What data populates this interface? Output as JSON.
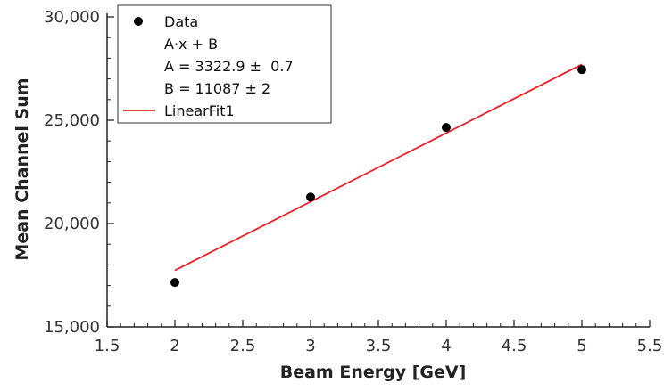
{
  "chart_data": {
    "type": "scatter",
    "title": "",
    "xlabel": "Beam Energy [GeV]",
    "ylabel": "Mean Channel Sum",
    "xlim": [
      1.5,
      5.5
    ],
    "ylim": [
      15000,
      30000
    ],
    "x_ticks": [
      1.5,
      2,
      2.5,
      3,
      3.5,
      4,
      4.5,
      5,
      5.5
    ],
    "x_tick_labels": [
      "1.5",
      "2",
      "2.5",
      "3",
      "3.5",
      "4",
      "4.5",
      "5",
      "5.5"
    ],
    "y_ticks": [
      15000,
      20000,
      25000,
      30000
    ],
    "y_tick_labels": [
      "15,000",
      "20,000",
      "25,000",
      "30,000"
    ],
    "grid": false,
    "legend_position": "top-left",
    "series": [
      {
        "name": "Data",
        "kind": "points",
        "color": "#000000",
        "x": [
          2,
          3,
          4,
          5
        ],
        "y": [
          17150,
          21280,
          24650,
          27450
        ]
      },
      {
        "name": "LinearFit1",
        "kind": "line",
        "color": "#e8222a",
        "x": [
          2,
          5
        ],
        "y": [
          17733,
          27702
        ]
      }
    ],
    "legend": {
      "data_label": "Data",
      "fit_label": "LinearFit1",
      "annotation_lines": [
        "A·x + B",
        "A = 3322.9 ±  0.7",
        "B = 11087 ± 2"
      ]
    }
  }
}
